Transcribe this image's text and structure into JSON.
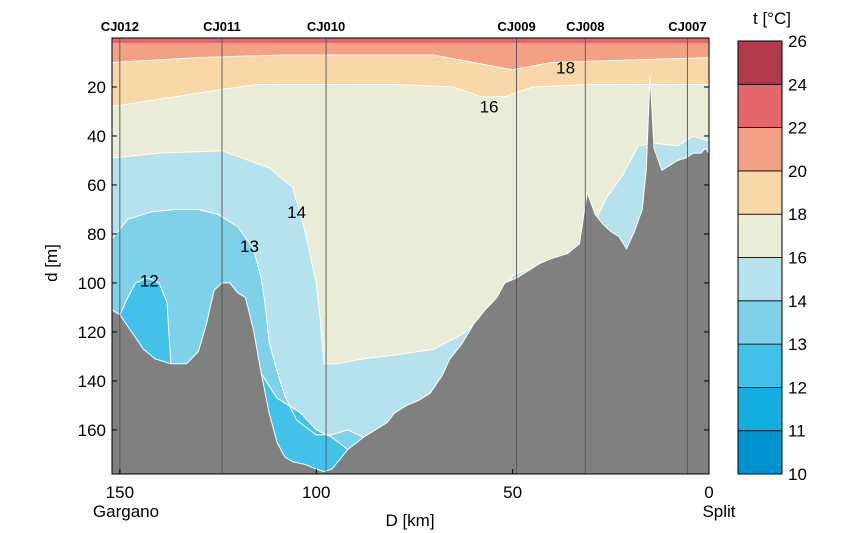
{
  "chart_data": {
    "type": "heatmap",
    "title": "",
    "xlabel": "D [km]",
    "ylabel": "d [m]",
    "x_reversed": true,
    "xlim": [
      152,
      0
    ],
    "ylim": [
      0,
      178
    ],
    "x_ticks": [
      150,
      100,
      50,
      0
    ],
    "y_ticks": [
      20,
      40,
      60,
      80,
      100,
      120,
      140,
      160
    ],
    "endpoint_labels": {
      "left": "Gargano",
      "right": "Split"
    },
    "stations": [
      {
        "name": "CJ012",
        "x": 150
      },
      {
        "name": "CJ011",
        "x": 124
      },
      {
        "name": "CJ010",
        "x": 97.5
      },
      {
        "name": "CJ009",
        "x": 49
      },
      {
        "name": "CJ008",
        "x": 31.5
      },
      {
        "name": "CJ007",
        "x": 5.5
      }
    ],
    "colorbar": {
      "title": "t [°C]",
      "levels": [
        10,
        11,
        12,
        13,
        14,
        16,
        18,
        20,
        22,
        24,
        26
      ],
      "colors": [
        "#0093d0",
        "#13acde",
        "#42c2e8",
        "#7fd1ea",
        "#b6e2ee",
        "#e9ecd6",
        "#f8d8a8",
        "#f2a185",
        "#e3676a",
        "#b3394b"
      ]
    },
    "contour_labels": [
      {
        "text": "18",
        "x": 36.5,
        "y": 12
      },
      {
        "text": "16",
        "x": 56,
        "y": 28
      },
      {
        "text": "14",
        "x": 105,
        "y": 71
      },
      {
        "text": "13",
        "x": 117,
        "y": 85
      },
      {
        "text": "12",
        "x": 142.5,
        "y": 99
      }
    ],
    "bathymetry": [
      [
        152,
        111
      ],
      [
        150,
        113
      ],
      [
        147,
        120
      ],
      [
        144,
        127
      ],
      [
        141,
        131
      ],
      [
        137,
        133
      ],
      [
        133,
        133
      ],
      [
        130,
        128
      ],
      [
        128,
        117
      ],
      [
        126,
        103
      ],
      [
        124,
        100
      ],
      [
        122,
        100
      ],
      [
        120,
        104
      ],
      [
        118,
        106
      ],
      [
        116,
        119
      ],
      [
        114,
        137
      ],
      [
        112,
        153
      ],
      [
        110,
        165
      ],
      [
        108,
        171
      ],
      [
        106,
        173
      ],
      [
        103,
        174
      ],
      [
        100,
        176
      ],
      [
        98,
        177
      ],
      [
        96,
        176
      ],
      [
        94,
        172
      ],
      [
        92,
        168
      ],
      [
        88,
        163
      ],
      [
        85,
        160
      ],
      [
        82,
        157
      ],
      [
        80,
        153
      ],
      [
        77,
        150
      ],
      [
        74,
        148
      ],
      [
        71,
        145
      ],
      [
        68,
        138
      ],
      [
        66,
        131
      ],
      [
        63,
        125
      ],
      [
        60,
        117
      ],
      [
        57,
        111
      ],
      [
        54,
        106
      ],
      [
        52,
        100
      ],
      [
        49,
        98
      ],
      [
        46,
        95
      ],
      [
        43,
        92
      ],
      [
        40,
        90
      ],
      [
        36,
        88
      ],
      [
        33,
        84
      ],
      [
        31,
        63
      ],
      [
        29,
        72
      ],
      [
        27,
        76
      ],
      [
        25,
        79
      ],
      [
        23,
        81
      ],
      [
        21,
        86
      ],
      [
        19,
        79
      ],
      [
        17,
        70
      ],
      [
        16,
        54
      ],
      [
        15,
        15
      ],
      [
        14,
        45
      ],
      [
        12,
        54
      ],
      [
        10,
        52
      ],
      [
        8,
        50
      ],
      [
        6,
        49
      ],
      [
        4,
        47
      ],
      [
        2,
        47
      ],
      [
        1,
        45
      ],
      [
        0,
        47
      ]
    ],
    "isotherms": {
      "t20": [
        [
          152,
          2
        ],
        [
          0,
          2
        ]
      ],
      "t18": [
        [
          152,
          10
        ],
        [
          130,
          8
        ],
        [
          110,
          7
        ],
        [
          90,
          7
        ],
        [
          70,
          7
        ],
        [
          60,
          10
        ],
        [
          50,
          13
        ],
        [
          40,
          10
        ],
        [
          20,
          9
        ],
        [
          0,
          8
        ]
      ],
      "t16": [
        [
          152,
          28
        ],
        [
          140,
          25
        ],
        [
          124,
          21
        ],
        [
          115,
          19
        ],
        [
          100,
          19
        ],
        [
          80,
          19
        ],
        [
          65,
          20
        ],
        [
          58,
          24
        ],
        [
          52,
          24
        ],
        [
          45,
          20
        ],
        [
          30,
          19
        ],
        [
          0,
          19
        ]
      ],
      "t14": [
        [
          152,
          49
        ],
        [
          140,
          47
        ],
        [
          124,
          46
        ],
        [
          112,
          53
        ],
        [
          106,
          61
        ],
        [
          103,
          78
        ],
        [
          100,
          100
        ],
        [
          99,
          115
        ],
        [
          98,
          133
        ],
        [
          95,
          133
        ],
        [
          88,
          131
        ],
        [
          78,
          129
        ],
        [
          70,
          127
        ],
        [
          63,
          121
        ],
        [
          58,
          115
        ],
        [
          54,
          106
        ],
        [
          50,
          97
        ],
        [
          47,
          95
        ],
        [
          43,
          93
        ],
        [
          36,
          88
        ],
        [
          32,
          84
        ],
        [
          30,
          78
        ],
        [
          26,
          65
        ],
        [
          22,
          56
        ],
        [
          18,
          44
        ],
        [
          14,
          43
        ],
        [
          8,
          44
        ],
        [
          4,
          40
        ],
        [
          0,
          42
        ]
      ],
      "t13": [
        [
          152,
          82
        ],
        [
          148,
          74
        ],
        [
          142,
          71
        ],
        [
          136,
          70
        ],
        [
          130,
          70
        ],
        [
          125,
          72
        ],
        [
          120,
          77
        ],
        [
          116,
          86
        ],
        [
          114,
          98
        ],
        [
          113,
          109
        ],
        [
          112,
          124
        ],
        [
          110,
          136
        ],
        [
          108,
          146
        ],
        [
          105,
          156
        ],
        [
          100,
          162
        ],
        [
          96,
          162
        ],
        [
          92,
          160
        ],
        [
          88,
          163
        ]
      ],
      "t12": [
        [
          152,
          117
        ],
        [
          150,
          113
        ],
        [
          148,
          106
        ],
        [
          146,
          100
        ],
        [
          143,
          98
        ],
        [
          140,
          100
        ],
        [
          138,
          108
        ],
        [
          137,
          133
        ]
      ],
      "t12b": [
        [
          114,
          137
        ],
        [
          110,
          147
        ],
        [
          104,
          153
        ],
        [
          100,
          160
        ],
        [
          96,
          163
        ],
        [
          92,
          168
        ]
      ]
    }
  }
}
